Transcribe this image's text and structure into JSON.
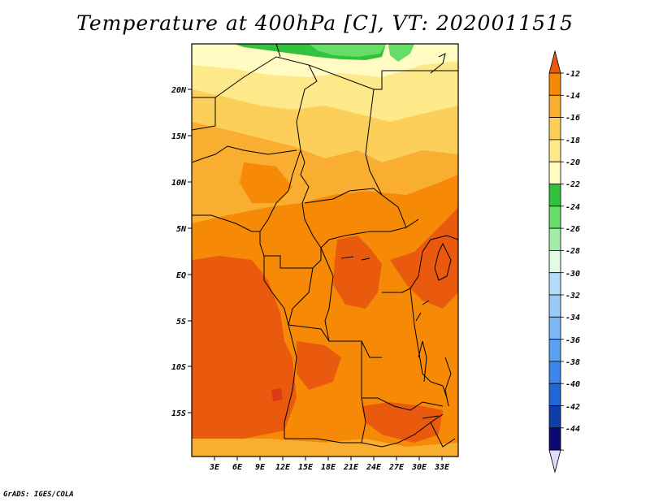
{
  "title": "Temperature at 400hPa [C], VT: 2020011515",
  "credit": "GrADS: IGES/COLA",
  "map": {
    "lat_labels": [
      "20N",
      "15N",
      "10N",
      "5N",
      "EQ",
      "5S",
      "10S",
      "15S"
    ],
    "lon_labels": [
      "3E",
      "6E",
      "9E",
      "12E",
      "15E",
      "18E",
      "21E",
      "24E",
      "27E",
      "30E",
      "33E"
    ]
  },
  "colorbar": {
    "labels": [
      "-12",
      "-14",
      "-16",
      "-18",
      "-20",
      "-22",
      "-24",
      "-26",
      "-28",
      "-30",
      "-32",
      "-34",
      "-36",
      "-38",
      "-40",
      "-42",
      "-44"
    ],
    "colors": [
      "#ea5a0e",
      "#f68a06",
      "#f9ae32",
      "#fbcf59",
      "#fde98a",
      "#fffbc2",
      "#33c23d",
      "#66dd66",
      "#a3ecaa",
      "#e3fbe5",
      "#b6dcfc",
      "#9bc9f8",
      "#7db7f5",
      "#5ba1f2",
      "#3c86ea",
      "#2066d7",
      "#0f3ea8",
      "#0b0a73",
      "#dcdcf8"
    ]
  }
}
